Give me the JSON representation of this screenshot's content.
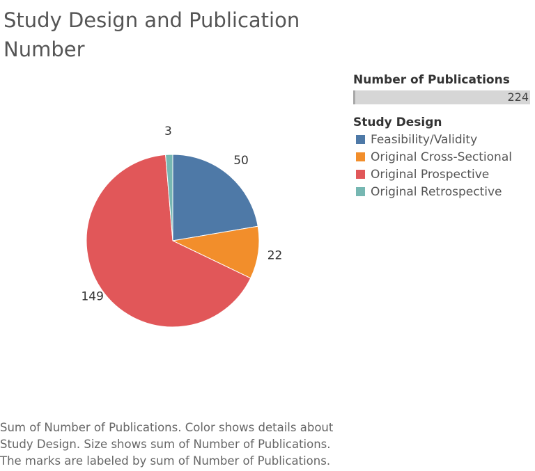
{
  "title": "Study Design and Publication Number",
  "size_legend": {
    "title": "Number of Publications",
    "value_label": "224",
    "fill_fraction": 1.0
  },
  "chart_data": {
    "type": "pie",
    "title": "Study Design and Publication Number",
    "legend_title": "Study Design",
    "legend_position": "right",
    "slices": [
      {
        "name": "Feasibility/Validity",
        "value": 50,
        "label": "50",
        "color": "#4e79a7"
      },
      {
        "name": "Original Cross-Sectional",
        "value": 22,
        "label": "22",
        "color": "#f28e2b"
      },
      {
        "name": "Original Prospective",
        "value": 149,
        "label": "149",
        "color": "#e15759"
      },
      {
        "name": "Original Retrospective",
        "value": 3,
        "label": "3",
        "color": "#76b7b2"
      }
    ],
    "total": 224
  },
  "caption": [
    "Sum of Number of Publications.  Color shows details about",
    "Study Design.  Size shows sum of Number of Publications.",
    "The marks are labeled by sum of Number of Publications."
  ]
}
